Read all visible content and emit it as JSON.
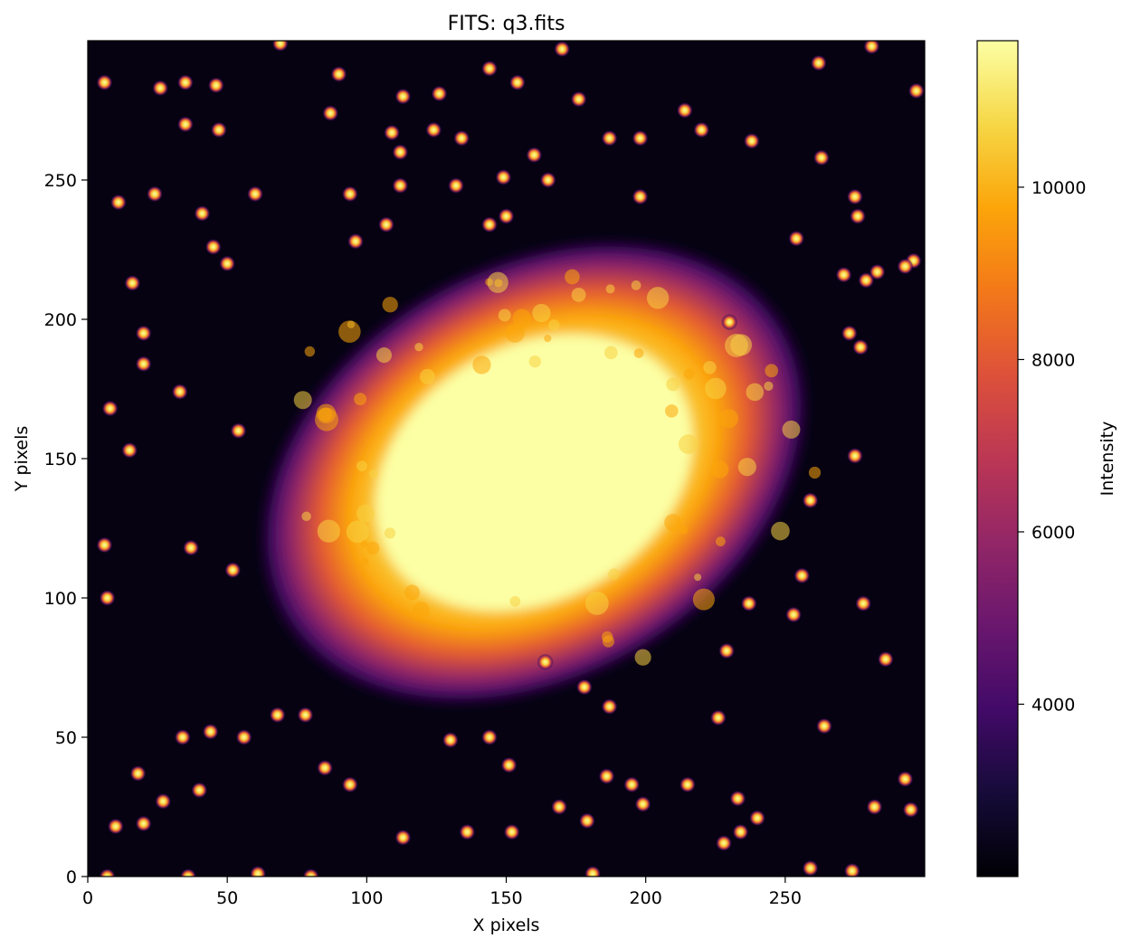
{
  "chart_data": {
    "type": "heatmap",
    "title": "FITS: q3.fits",
    "xlabel": "X pixels",
    "ylabel": "Y pixels",
    "xlim": [
      0,
      300
    ],
    "ylim": [
      0,
      300
    ],
    "xticks": [
      0,
      50,
      100,
      150,
      200,
      250
    ],
    "yticks": [
      0,
      50,
      100,
      150,
      200,
      250
    ],
    "grid": false,
    "colormap": "inferno",
    "colorbar": {
      "label": "Intensity",
      "range": [
        2000,
        11700
      ],
      "ticks": [
        4000,
        6000,
        8000,
        10000
      ],
      "tick_labels": [
        "4000",
        "6000",
        "8000",
        "10000"
      ]
    },
    "image_content": {
      "description_of_values": "Crab-nebula-like extended emission centred near (160, 145) with a saturated core (~11500) fading to ~4000 at its edges; background ~2000; scattered bright point sources.",
      "background_level": 2000,
      "peak_level": 11700,
      "nebula_center": [
        160,
        145
      ],
      "point_sources": [
        [
          6,
          285
        ],
        [
          26,
          283
        ],
        [
          35,
          285
        ],
        [
          46,
          284
        ],
        [
          69,
          299
        ],
        [
          90,
          288
        ],
        [
          113,
          280
        ],
        [
          126,
          281
        ],
        [
          144,
          290
        ],
        [
          170,
          297
        ],
        [
          154,
          285
        ],
        [
          11,
          242
        ],
        [
          24,
          245
        ],
        [
          35,
          270
        ],
        [
          47,
          268
        ],
        [
          41,
          238
        ],
        [
          60,
          245
        ],
        [
          87,
          274
        ],
        [
          94,
          245
        ],
        [
          112,
          260
        ],
        [
          134,
          265
        ],
        [
          149,
          251
        ],
        [
          165,
          250
        ],
        [
          176,
          279
        ],
        [
          187,
          265
        ],
        [
          198,
          265
        ],
        [
          214,
          275
        ],
        [
          220,
          268
        ],
        [
          238,
          264
        ],
        [
          263,
          258
        ],
        [
          262,
          292
        ],
        [
          281,
          298
        ],
        [
          297,
          282
        ],
        [
          144,
          234
        ],
        [
          150,
          237
        ],
        [
          107,
          234
        ],
        [
          96,
          228
        ],
        [
          109,
          267
        ],
        [
          124,
          268
        ],
        [
          112,
          248
        ],
        [
          132,
          248
        ],
        [
          160,
          259
        ],
        [
          198,
          244
        ],
        [
          20,
          195
        ],
        [
          20,
          184
        ],
        [
          8,
          168
        ],
        [
          54,
          160
        ],
        [
          37,
          118
        ],
        [
          6,
          119
        ],
        [
          7,
          100
        ],
        [
          52,
          110
        ],
        [
          33,
          174
        ],
        [
          15,
          153
        ],
        [
          50,
          220
        ],
        [
          45,
          226
        ],
        [
          16,
          213
        ],
        [
          230,
          199
        ],
        [
          271,
          216
        ],
        [
          279,
          214
        ],
        [
          273,
          195
        ],
        [
          277,
          190
        ],
        [
          275,
          151
        ],
        [
          259,
          135
        ],
        [
          254,
          229
        ],
        [
          283,
          217
        ],
        [
          296,
          221
        ],
        [
          276,
          237
        ],
        [
          275,
          244
        ],
        [
          293,
          219
        ],
        [
          164,
          77
        ],
        [
          187,
          61
        ],
        [
          178,
          68
        ],
        [
          237,
          98
        ],
        [
          278,
          98
        ],
        [
          253,
          94
        ],
        [
          256,
          108
        ],
        [
          229,
          81
        ],
        [
          226,
          57
        ],
        [
          233,
          28
        ],
        [
          240,
          21
        ],
        [
          264,
          54
        ],
        [
          286,
          78
        ],
        [
          56,
          50
        ],
        [
          44,
          52
        ],
        [
          34,
          50
        ],
        [
          68,
          58
        ],
        [
          78,
          58
        ],
        [
          85,
          39
        ],
        [
          94,
          33
        ],
        [
          40,
          31
        ],
        [
          10,
          18
        ],
        [
          20,
          19
        ],
        [
          27,
          27
        ],
        [
          18,
          37
        ],
        [
          130,
          49
        ],
        [
          151,
          40
        ],
        [
          144,
          50
        ],
        [
          113,
          14
        ],
        [
          169,
          25
        ],
        [
          179,
          20
        ],
        [
          186,
          36
        ],
        [
          195,
          33
        ],
        [
          199,
          26
        ],
        [
          215,
          33
        ],
        [
          228,
          12
        ],
        [
          234,
          16
        ],
        [
          259,
          3
        ],
        [
          274,
          2
        ],
        [
          282,
          25
        ],
        [
          293,
          35
        ],
        [
          295,
          24
        ],
        [
          7,
          0
        ],
        [
          36,
          0
        ],
        [
          61,
          1
        ],
        [
          80,
          0
        ],
        [
          136,
          16
        ],
        [
          152,
          16
        ],
        [
          181,
          1
        ]
      ]
    }
  }
}
